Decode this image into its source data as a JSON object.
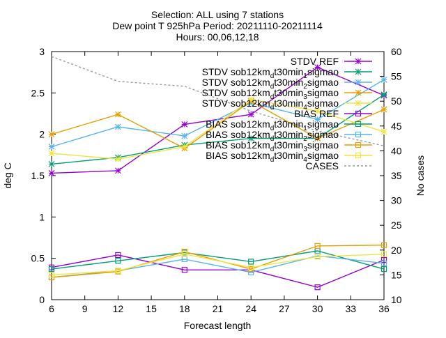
{
  "chart_data": {
    "type": "line",
    "title_lines": [
      "Selection: ALL using      7 stations",
      "Dew point T 925hPa   Period: 20211110-20211114",
      "Hours: 00,06,12,18"
    ],
    "xlabel": "Forecast length",
    "ylabel": "deg C",
    "y2label": "No cases",
    "x_ticks": [
      6,
      9,
      12,
      15,
      18,
      21,
      24,
      27,
      30,
      33,
      36
    ],
    "y_ticks": [
      0,
      0.5,
      1,
      1.5,
      2,
      2.5,
      3
    ],
    "y_tick_labels": [
      "0",
      "0.5",
      "1",
      "1.5",
      "2",
      "2.5",
      "3"
    ],
    "y2_ticks": [
      10,
      15,
      20,
      25,
      30,
      35,
      40,
      45,
      50,
      55,
      60
    ],
    "xlim": [
      6,
      36
    ],
    "ylim": [
      0,
      3
    ],
    "y2lim": [
      10,
      60
    ],
    "grid": false,
    "legend_position": "top-right",
    "x": [
      6,
      12,
      18,
      24,
      30,
      36
    ],
    "series": [
      {
        "name": "STDV REF",
        "color": "#9400d3",
        "marker": "star",
        "axis": "y",
        "values": [
          1.53,
          1.56,
          2.12,
          2.24,
          2.81,
          2.47
        ]
      },
      {
        "name": "STDV sob12km_dt30min_1sigmao",
        "color": "#009e73",
        "marker": "star",
        "axis": "y",
        "values": [
          1.64,
          1.72,
          1.87,
          1.95,
          1.95,
          2.48
        ]
      },
      {
        "name": "STDV sob12km_dt30min_2sigmao",
        "color": "#56b4e9",
        "marker": "star",
        "axis": "y",
        "values": [
          1.85,
          2.09,
          1.98,
          2.38,
          2.18,
          2.66
        ]
      },
      {
        "name": "STDV sob12km_dt30min_3sigmao",
        "color": "#e69f00",
        "marker": "star",
        "axis": "y",
        "values": [
          2.0,
          2.24,
          1.83,
          2.4,
          1.95,
          2.3
        ]
      },
      {
        "name": "STDV sob12km_dt30min_4sigmao",
        "color": "#f0e442",
        "marker": "star",
        "axis": "y",
        "values": [
          1.77,
          1.7,
          1.85,
          2.42,
          2.28,
          2.03
        ]
      },
      {
        "name": "BIAS REF",
        "color": "#9400d3",
        "marker": "square",
        "axis": "y",
        "values": [
          0.39,
          0.54,
          0.36,
          0.36,
          0.15,
          0.48
        ]
      },
      {
        "name": "BIAS sob12km_dt30min_1sigmao",
        "color": "#009e73",
        "marker": "square",
        "axis": "y",
        "values": [
          0.37,
          0.47,
          0.57,
          0.46,
          0.59,
          0.37
        ]
      },
      {
        "name": "BIAS sob12km_dt30min_2sigmao",
        "color": "#56b4e9",
        "marker": "square",
        "axis": "y",
        "values": [
          0.27,
          0.35,
          0.49,
          0.33,
          0.53,
          0.44
        ]
      },
      {
        "name": "BIAS sob12km_dt30min_3sigmao",
        "color": "#e69f00",
        "marker": "square",
        "axis": "y",
        "values": [
          0.27,
          0.34,
          0.58,
          0.37,
          0.65,
          0.66
        ]
      },
      {
        "name": "BIAS sob12km_dt30min_4sigmao",
        "color": "#f0e442",
        "marker": "square",
        "axis": "y",
        "values": [
          0.3,
          0.35,
          0.55,
          0.39,
          0.52,
          0.55
        ]
      },
      {
        "name": "CASES",
        "color": "#999999",
        "marker": "none",
        "dashed": true,
        "axis": "y2",
        "values": [
          59,
          54,
          53,
          48,
          44,
          41
        ]
      }
    ]
  }
}
